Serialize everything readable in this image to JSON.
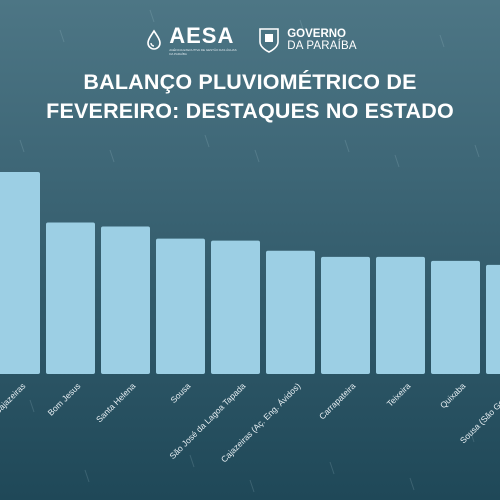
{
  "header": {
    "aesa_logo": "AESA",
    "aesa_tagline": "AGÊNCIA EXECUTIVA DE GESTÃO DAS ÁGUAS DA PARAÍBA",
    "gov_line1": "GOVERNO",
    "gov_line2": "DA PARAÍBA"
  },
  "title_line1": "BALANÇO PLUVIOMÉTRICO DE",
  "title_line2": "FEVEREIRO: DESTAQUES NO ESTADO",
  "colors": {
    "bar": "#9ccfe4",
    "label": "#e6eef2"
  },
  "chart_data": {
    "type": "bar",
    "title": "BALANÇO PLUVIOMÉTRICO DE FEVEREIRO: DESTAQUES NO ESTADO",
    "categories": [
      "Cajazeiras",
      "Bom Jesus",
      "Santa Helena",
      "Sousa",
      "São José da Lagoa Tapada",
      "Cajazeiras (Aç. Eng. Ávidos)",
      "Carrapateira",
      "Teixeira",
      "Quixaba",
      "Sousa (São Gonçalo)"
    ],
    "values": [
      100,
      75,
      73,
      67,
      66,
      61,
      58,
      58,
      56,
      54
    ],
    "ylim": [
      0,
      100
    ],
    "grid": false,
    "legend": "none"
  }
}
